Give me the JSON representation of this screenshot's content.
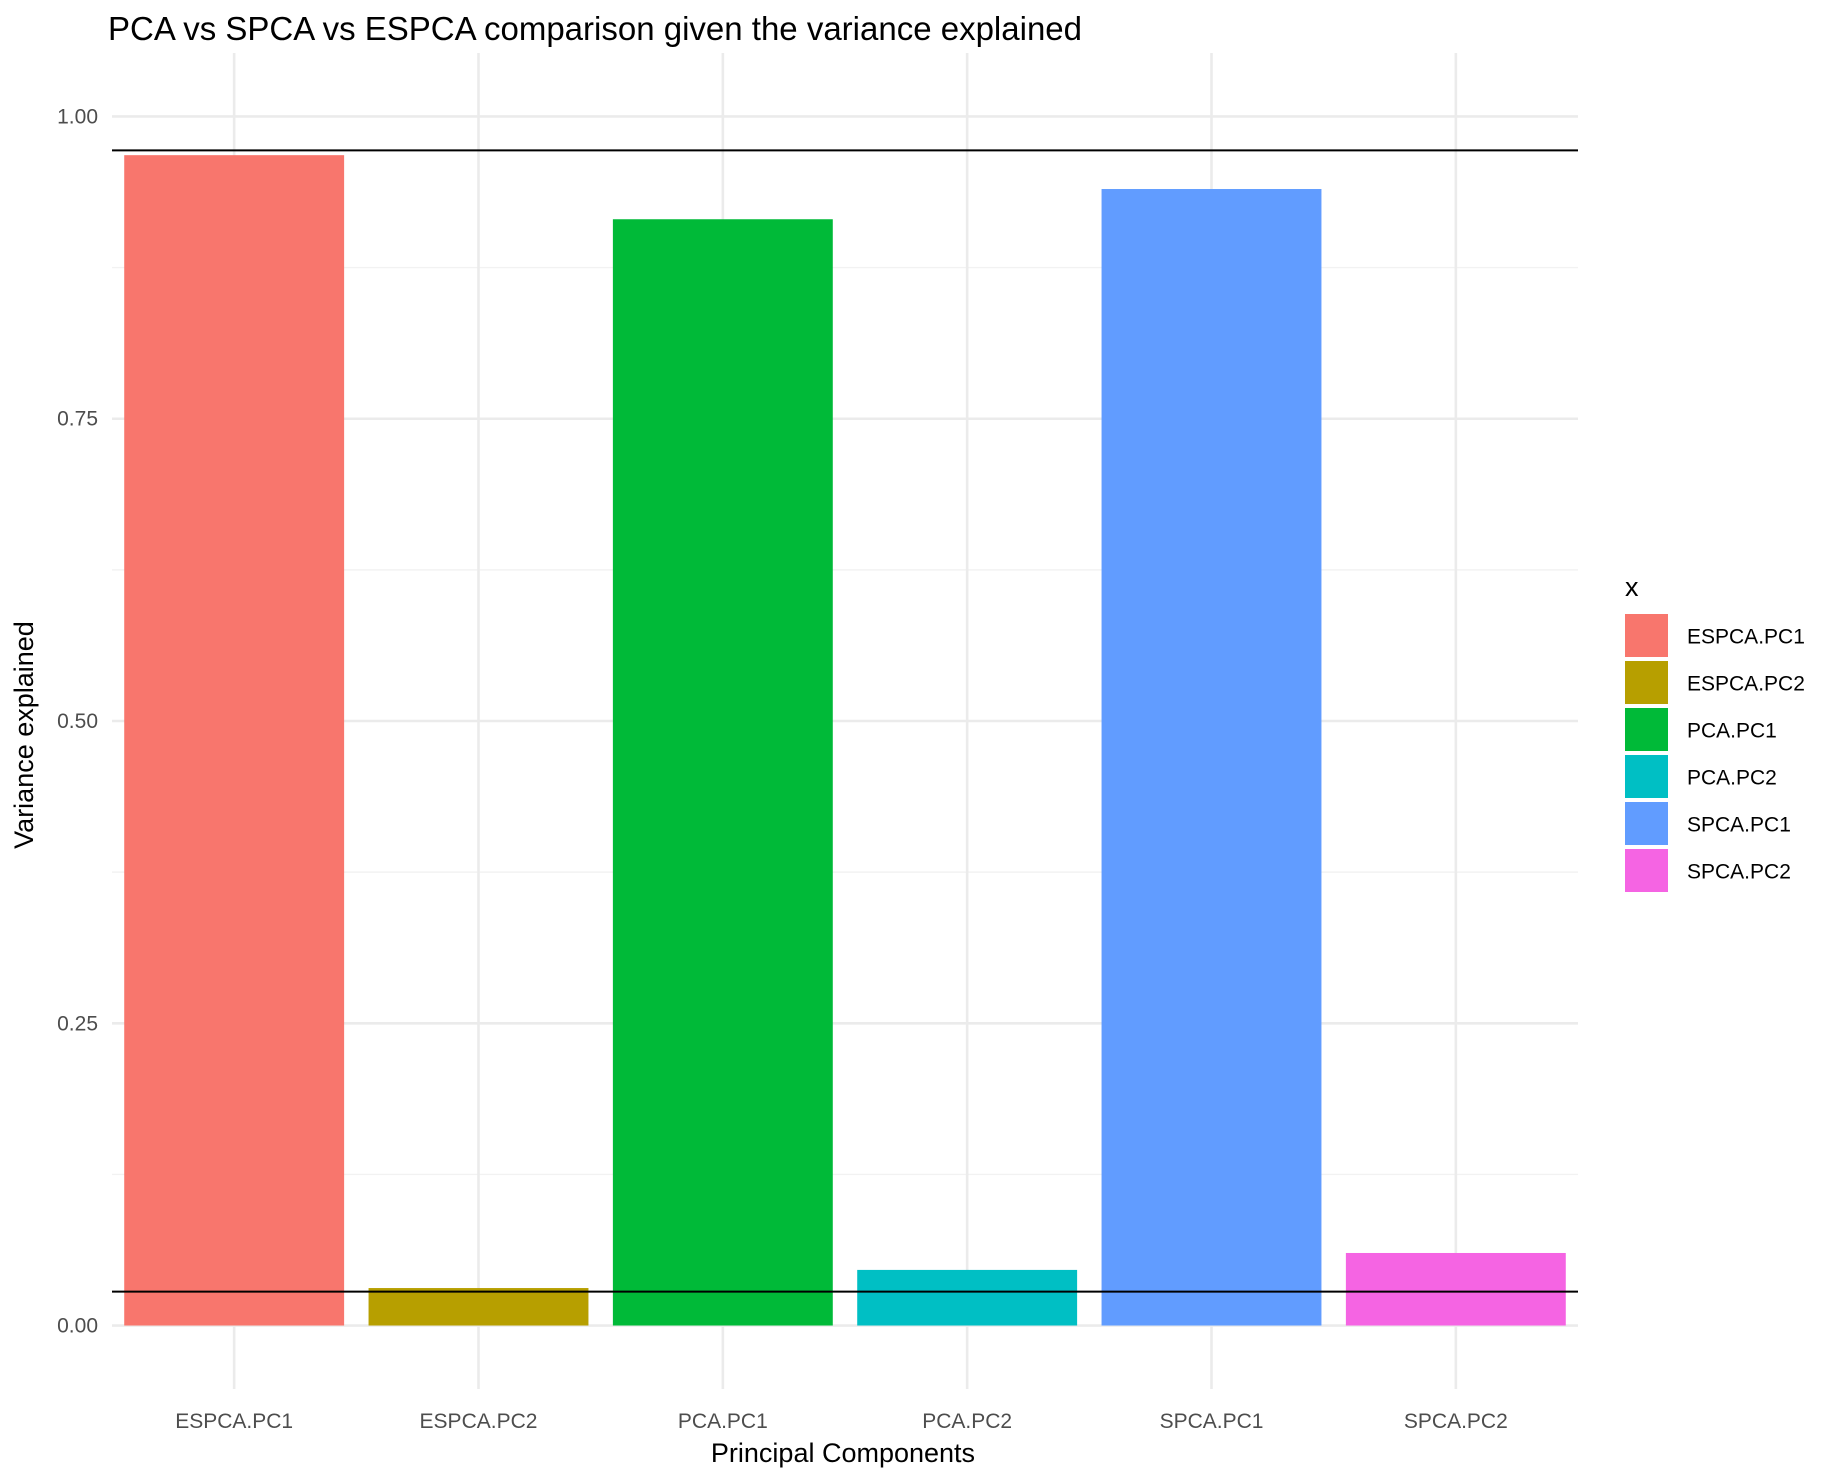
{
  "chart_data": {
    "type": "bar",
    "title": "PCA vs SPCA vs ESPCA comparison given the variance explained",
    "xlabel": "Principal Components",
    "ylabel": "Variance explained",
    "categories": [
      "ESPCA.PC1",
      "ESPCA.PC2",
      "PCA.PC1",
      "PCA.PC2",
      "SPCA.PC1",
      "SPCA.PC2"
    ],
    "values": [
      0.968,
      0.031,
      0.915,
      0.046,
      0.94,
      0.06
    ],
    "colors": [
      "#F8766D",
      "#B79F00",
      "#00BA38",
      "#00BFC4",
      "#619CFF",
      "#F564E3"
    ],
    "ylim": [
      -0.0525,
      1.0525
    ],
    "yticks": [
      0.0,
      0.25,
      0.5,
      0.75,
      1.0
    ],
    "ytick_labels": [
      "0.00",
      "0.25",
      "0.50",
      "0.75",
      "1.00"
    ],
    "hlines": [
      0.972,
      0.028
    ],
    "grid": true,
    "legend": {
      "title": "x",
      "position": "right",
      "entries": [
        "ESPCA.PC1",
        "ESPCA.PC2",
        "PCA.PC1",
        "PCA.PC2",
        "SPCA.PC1",
        "SPCA.PC2"
      ]
    }
  }
}
